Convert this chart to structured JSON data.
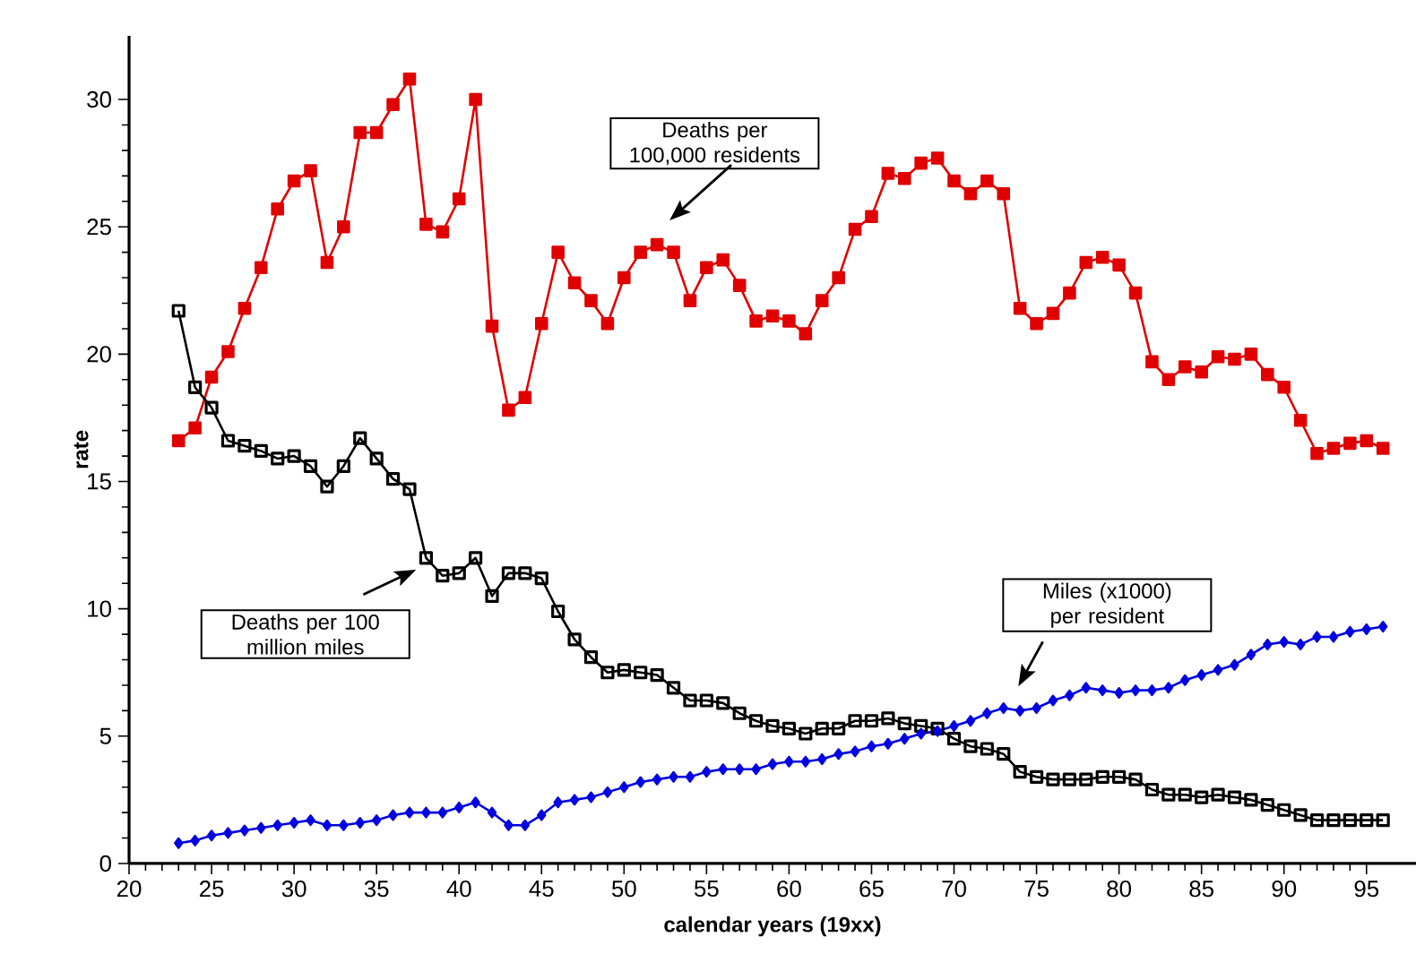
{
  "chart_data": {
    "type": "line",
    "xlabel": "calendar years (19xx)",
    "ylabel": "rate",
    "x": [
      23,
      24,
      25,
      26,
      27,
      28,
      29,
      30,
      31,
      32,
      33,
      34,
      35,
      36,
      37,
      38,
      39,
      40,
      41,
      42,
      43,
      44,
      45,
      46,
      47,
      48,
      49,
      50,
      51,
      52,
      53,
      54,
      55,
      56,
      57,
      58,
      59,
      60,
      61,
      62,
      63,
      64,
      65,
      66,
      67,
      68,
      69,
      70,
      71,
      72,
      73,
      74,
      75,
      76,
      77,
      78,
      79,
      80,
      81,
      82,
      83,
      84,
      85,
      86,
      87,
      88,
      89,
      90,
      91,
      92,
      93,
      94,
      95,
      96
    ],
    "series": [
      {
        "color": "#e00000",
        "marker": "square",
        "values": [
          16.6,
          17.1,
          19.1,
          20.1,
          21.8,
          23.4,
          25.7,
          26.8,
          27.2,
          23.6,
          25.0,
          28.7,
          28.7,
          29.8,
          30.8,
          25.1,
          24.8,
          26.1,
          30.0,
          21.1,
          17.8,
          18.3,
          21.2,
          24.0,
          22.8,
          22.1,
          21.2,
          23.0,
          24.0,
          24.3,
          24.0,
          22.1,
          23.4,
          23.7,
          22.7,
          21.3,
          21.5,
          21.3,
          20.8,
          22.1,
          23.0,
          24.9,
          25.4,
          27.1,
          26.9,
          27.5,
          27.7,
          26.8,
          26.3,
          26.8,
          26.3,
          21.8,
          21.2,
          21.6,
          22.4,
          23.6,
          23.8,
          23.5,
          22.4,
          19.7,
          19.0,
          19.5,
          19.3,
          19.9,
          19.8,
          20.0,
          19.2,
          18.7,
          17.4,
          16.1,
          16.3,
          16.5,
          16.6,
          16.3
        ]
      },
      {
        "color": "#000000",
        "marker": "square",
        "values": [
          21.7,
          18.7,
          17.9,
          16.6,
          16.4,
          16.2,
          15.9,
          16.0,
          15.6,
          14.8,
          15.6,
          16.7,
          15.9,
          15.1,
          14.7,
          12.0,
          11.3,
          11.4,
          12.0,
          10.5,
          11.4,
          11.4,
          11.2,
          9.9,
          8.8,
          8.1,
          7.5,
          7.6,
          7.5,
          7.4,
          6.9,
          6.4,
          6.4,
          6.3,
          5.9,
          5.6,
          5.4,
          5.3,
          5.1,
          5.3,
          5.3,
          5.6,
          5.6,
          5.7,
          5.5,
          5.4,
          5.3,
          4.9,
          4.6,
          4.5,
          4.3,
          3.6,
          3.4,
          3.3,
          3.3,
          3.3,
          3.4,
          3.4,
          3.3,
          2.9,
          2.7,
          2.7,
          2.6,
          2.7,
          2.6,
          2.5,
          2.3,
          2.1,
          1.9,
          1.7,
          1.7,
          1.7,
          1.7,
          1.7
        ]
      },
      {
        "color": "#0000e0",
        "marker": "diamond",
        "values": [
          0.8,
          0.9,
          1.1,
          1.2,
          1.3,
          1.4,
          1.5,
          1.6,
          1.7,
          1.5,
          1.5,
          1.6,
          1.7,
          1.9,
          2.0,
          2.0,
          2.0,
          2.2,
          2.4,
          2.0,
          1.5,
          1.5,
          1.9,
          2.4,
          2.5,
          2.6,
          2.8,
          3.0,
          3.2,
          3.3,
          3.4,
          3.4,
          3.6,
          3.7,
          3.7,
          3.7,
          3.9,
          4.0,
          4.0,
          4.1,
          4.3,
          4.4,
          4.6,
          4.7,
          4.9,
          5.1,
          5.2,
          5.4,
          5.6,
          5.9,
          6.1,
          6.0,
          6.1,
          6.4,
          6.6,
          6.9,
          6.8,
          6.7,
          6.8,
          6.8,
          6.9,
          7.2,
          7.4,
          7.6,
          7.8,
          8.2,
          8.6,
          8.7,
          8.6,
          8.9,
          8.9,
          9.1,
          9.2,
          9.3
        ]
      }
    ],
    "annotations": [
      "Deaths per 100,000 residents",
      "Deaths per 100 million miles",
      "Miles (x1000) per resident"
    ],
    "xlim": [
      20,
      98
    ],
    "ylim": [
      0,
      32.5
    ],
    "xticks": [
      20,
      25,
      30,
      35,
      40,
      45,
      50,
      55,
      60,
      65,
      70,
      75,
      80,
      85,
      90,
      95
    ],
    "yticks": [
      0,
      5,
      10,
      15,
      20,
      25,
      30
    ],
    "grid": false
  }
}
